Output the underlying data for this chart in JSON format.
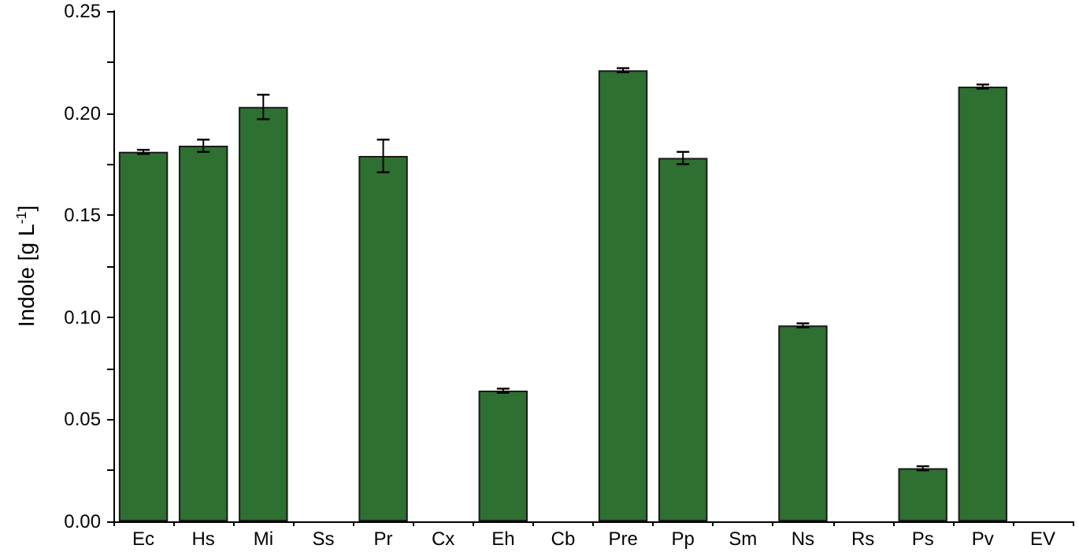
{
  "chart_data": {
    "type": "bar",
    "ylabel": "Indole [g L$^{-1}$]",
    "categories": [
      "Ec",
      "Hs",
      "Mi",
      "Ss",
      "Pr",
      "Cx",
      "Eh",
      "Cb",
      "Pre",
      "Pp",
      "Sm",
      "Ns",
      "Rs",
      "Ps",
      "Pv",
      "EV"
    ],
    "series": [
      {
        "color": "#2e7031",
        "values": [
          0.181,
          0.184,
          0.203,
          null,
          0.179,
          null,
          0.064,
          null,
          0.221,
          0.178,
          null,
          0.096,
          null,
          0.026,
          0.213,
          null
        ],
        "errors": [
          0.001,
          0.003,
          0.006,
          null,
          0.008,
          null,
          0.001,
          null,
          0.001,
          0.003,
          null,
          0.001,
          null,
          0.001,
          0.001,
          null
        ]
      }
    ],
    "ylim": [
      0,
      0.25
    ],
    "yticks": [
      {
        "value": 0,
        "label": "0.00"
      },
      {
        "value": 0.05,
        "label": "0.05"
      },
      {
        "value": 0.1,
        "label": "0.10"
      },
      {
        "value": 0.15,
        "label": "0.15"
      },
      {
        "value": 0.2,
        "label": "0.20"
      },
      {
        "value": 0.25,
        "label": "0.25"
      }
    ],
    "grid": false
  }
}
